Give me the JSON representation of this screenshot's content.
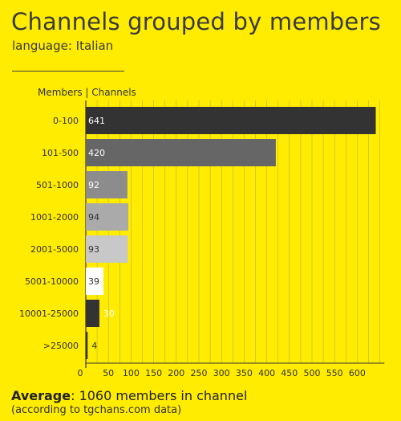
{
  "title": "Channels grouped by members",
  "subtitle": "language: Italian",
  "footer": {
    "average_label": "Average",
    "average_text": ": 1060 members in channel",
    "source_note": "(according to tgchans.com data)"
  },
  "chart_data": {
    "type": "bar",
    "orientation": "horizontal",
    "header": "Members | Channels",
    "categories": [
      "0-100",
      "101-500",
      "501-1000",
      "1001-2000",
      "2001-5000",
      "5001-10000",
      "10001-25000",
      ">25000"
    ],
    "values": [
      641,
      420,
      92,
      94,
      93,
      39,
      30,
      4
    ],
    "bar_colors": [
      "#333333",
      "#666666",
      "#8c8c8c",
      "#aaaaaa",
      "#c8c8c8",
      "#ffffff",
      "#333333",
      "#333333"
    ],
    "label_colors": [
      "#ffffff",
      "#ffffff",
      "#ffffff",
      "#333333",
      "#333333",
      "#333333",
      "#ffffff",
      "#333333"
    ],
    "xticks": [
      0,
      50,
      100,
      150,
      200,
      250,
      300,
      350,
      400,
      450,
      500,
      550,
      600
    ],
    "xlim": [
      0,
      660
    ],
    "grid": true
  }
}
